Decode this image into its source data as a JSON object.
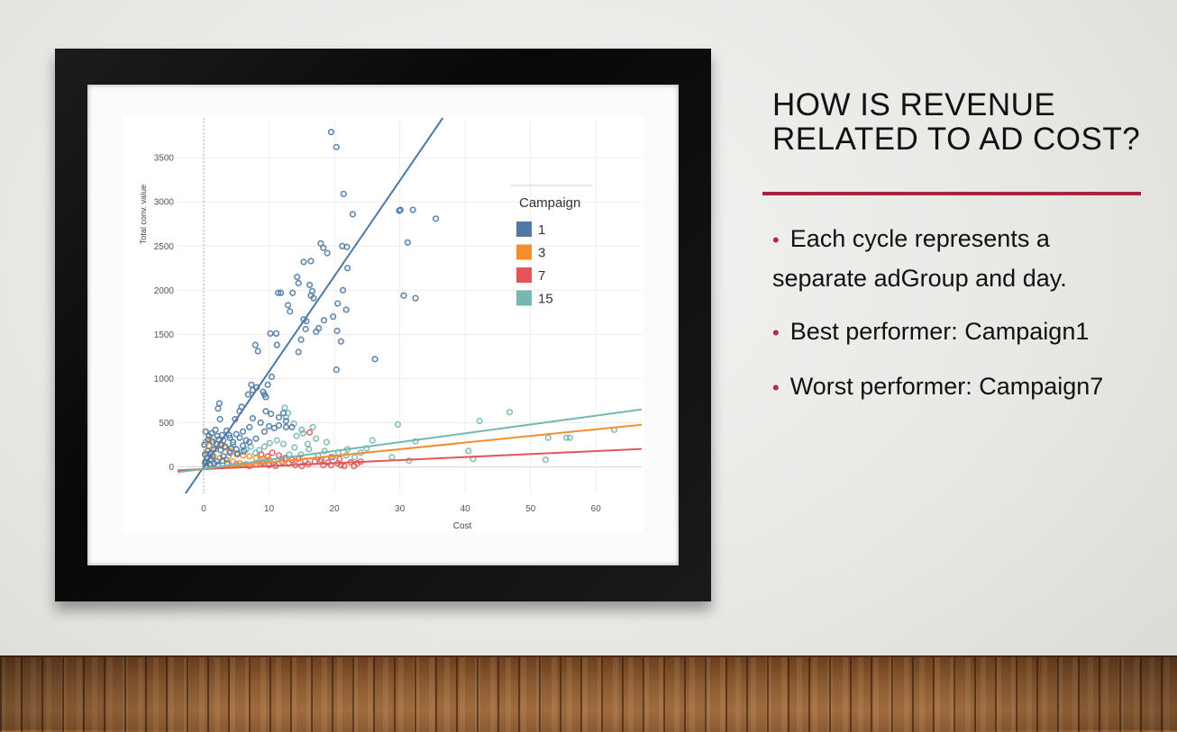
{
  "slide": {
    "title_line1": "HOW IS REVENUE",
    "title_line2": "RELATED TO AD COST?",
    "bullets": [
      {
        "line1": "Each cycle represents a",
        "line2": "separate adGroup and day."
      },
      {
        "line1": "Best performer: Campaign1"
      },
      {
        "line1": "Worst performer: Campaign7"
      }
    ],
    "accent_color": "#a6253d"
  },
  "chart_data": {
    "type": "scatter",
    "xlabel": "Cost",
    "ylabel": "Total conv. value",
    "xlim": [
      -4,
      67
    ],
    "ylim": [
      -300,
      3950
    ],
    "xticks": [
      0,
      10,
      20,
      30,
      40,
      50,
      60
    ],
    "yticks": [
      0,
      500,
      1000,
      1500,
      2000,
      2500,
      3000,
      3500
    ],
    "grid": true,
    "legend": {
      "title": "Campaign",
      "position": "top-right"
    },
    "series": [
      {
        "name": "1",
        "color": "#4e79a7",
        "trend": {
          "slope": 108,
          "intercept": 0
        },
        "points": [
          [
            19.5,
            3790
          ],
          [
            20.3,
            3620
          ],
          [
            21.4,
            3090
          ],
          [
            22.8,
            2860
          ],
          [
            29.9,
            2900
          ],
          [
            30.1,
            2910
          ],
          [
            32,
            2910
          ],
          [
            35.5,
            2810
          ],
          [
            31.2,
            2540
          ],
          [
            30.6,
            1940
          ],
          [
            32.4,
            1910
          ],
          [
            26.2,
            1220
          ],
          [
            20.3,
            1100
          ],
          [
            21,
            1420
          ],
          [
            21.3,
            2000
          ],
          [
            21.8,
            1780
          ],
          [
            22,
            2250
          ],
          [
            20.5,
            1850
          ],
          [
            21.2,
            2500
          ],
          [
            21.9,
            2490
          ],
          [
            18.9,
            2420
          ],
          [
            17.9,
            2530
          ],
          [
            18.3,
            2480
          ],
          [
            15.3,
            2320
          ],
          [
            16.4,
            2330
          ],
          [
            14.3,
            2150
          ],
          [
            14.5,
            2080
          ],
          [
            13.6,
            1970
          ],
          [
            11.4,
            1970
          ],
          [
            11.8,
            1970
          ],
          [
            12.9,
            1830
          ],
          [
            13.2,
            1760
          ],
          [
            16.2,
            2060
          ],
          [
            16.6,
            1990
          ],
          [
            16.4,
            1940
          ],
          [
            16.8,
            1910
          ],
          [
            15.3,
            1670
          ],
          [
            15.7,
            1650
          ],
          [
            17.2,
            1530
          ],
          [
            18.4,
            1660
          ],
          [
            19.8,
            1700
          ],
          [
            20.4,
            1540
          ],
          [
            17.6,
            1570
          ],
          [
            15.6,
            1560
          ],
          [
            14.9,
            1440
          ],
          [
            14.5,
            1300
          ],
          [
            10.2,
            1510
          ],
          [
            11.1,
            1510
          ],
          [
            11.2,
            1380
          ],
          [
            7.9,
            1380
          ],
          [
            8.3,
            1310
          ],
          [
            9.8,
            930
          ],
          [
            10.4,
            1020
          ],
          [
            9.3,
            820
          ],
          [
            9.1,
            850
          ],
          [
            9.5,
            790
          ],
          [
            8.1,
            900
          ],
          [
            7.3,
            930
          ],
          [
            7.5,
            870
          ],
          [
            6.8,
            820
          ],
          [
            5.8,
            680
          ],
          [
            5.5,
            630
          ],
          [
            4.8,
            540
          ],
          [
            2.4,
            720
          ],
          [
            2.2,
            660
          ],
          [
            2.5,
            540
          ],
          [
            7.5,
            550
          ],
          [
            8.7,
            500
          ],
          [
            9.5,
            630
          ],
          [
            10.3,
            600
          ],
          [
            11.5,
            560
          ],
          [
            12.2,
            610
          ],
          [
            12.6,
            520
          ],
          [
            10,
            460
          ],
          [
            10.8,
            440
          ],
          [
            9.3,
            400
          ],
          [
            11.5,
            470
          ],
          [
            12.6,
            450
          ],
          [
            13.5,
            450
          ],
          [
            7,
            450
          ],
          [
            6,
            400
          ],
          [
            5,
            370
          ],
          [
            4,
            330
          ],
          [
            3,
            300
          ],
          [
            2,
            260
          ],
          [
            1.5,
            200
          ],
          [
            1,
            150
          ],
          [
            0.5,
            100
          ],
          [
            0.2,
            40
          ],
          [
            0.5,
            0
          ],
          [
            1,
            20
          ],
          [
            2,
            60
          ],
          [
            3,
            120
          ],
          [
            4,
            160
          ],
          [
            5,
            200
          ],
          [
            6,
            240
          ],
          [
            7,
            280
          ],
          [
            8,
            320
          ],
          [
            0.3,
            400
          ],
          [
            0.8,
            350
          ],
          [
            1.2,
            380
          ],
          [
            1.8,
            420
          ],
          [
            2.3,
            310
          ],
          [
            2.8,
            360
          ],
          [
            3.5,
            410
          ],
          [
            4.5,
            280
          ],
          [
            5.5,
            330
          ],
          [
            6.5,
            300
          ],
          [
            0.1,
            250
          ],
          [
            0.6,
            180
          ],
          [
            1.4,
            280
          ],
          [
            2.6,
            190
          ],
          [
            3.3,
            230
          ],
          [
            4.2,
            210
          ],
          [
            5.2,
            150
          ],
          [
            6.2,
            180
          ],
          [
            0.4,
            60
          ],
          [
            1.1,
            90
          ],
          [
            1.6,
            40
          ],
          [
            2.2,
            20
          ],
          [
            2.9,
            70
          ],
          [
            3.6,
            40
          ],
          [
            0.2,
            140
          ],
          [
            0.7,
            310
          ],
          [
            1.3,
            120
          ],
          [
            2.1,
            350
          ],
          [
            2.7,
            250
          ],
          [
            3.9,
            360
          ]
        ]
      },
      {
        "name": "3",
        "color": "#f28e2b",
        "trend": {
          "slope": 7.5,
          "intercept": -25
        },
        "points": [
          [
            0.3,
            280
          ],
          [
            0.8,
            240
          ],
          [
            1.2,
            300
          ],
          [
            1.8,
            200
          ],
          [
            2.5,
            260
          ],
          [
            3.2,
            220
          ],
          [
            4,
            180
          ],
          [
            5,
            150
          ],
          [
            6,
            130
          ],
          [
            7,
            120
          ],
          [
            8,
            100
          ],
          [
            9,
            90
          ],
          [
            10,
            80
          ],
          [
            0.5,
            150
          ],
          [
            1.5,
            120
          ],
          [
            2.5,
            100
          ],
          [
            3.5,
            80
          ],
          [
            4.5,
            60
          ],
          [
            5.5,
            40
          ],
          [
            6.5,
            30
          ],
          [
            0.2,
            60
          ],
          [
            0.9,
            30
          ]
        ]
      },
      {
        "name": "7",
        "color": "#e15759",
        "trend": {
          "slope": 3.4,
          "intercept": -25
        },
        "points": [
          [
            16.2,
            390
          ],
          [
            17.8,
            60
          ],
          [
            18.3,
            20
          ],
          [
            19.5,
            20
          ],
          [
            20.5,
            40
          ],
          [
            21.5,
            10
          ],
          [
            22.5,
            50
          ],
          [
            23.5,
            40
          ],
          [
            24,
            60
          ],
          [
            23,
            10
          ],
          [
            21,
            20
          ],
          [
            19,
            50
          ],
          [
            18,
            80
          ],
          [
            17,
            60
          ],
          [
            16,
            30
          ],
          [
            15,
            10
          ],
          [
            14,
            20
          ],
          [
            13,
            40
          ],
          [
            12,
            60
          ],
          [
            11,
            10
          ],
          [
            10,
            20
          ],
          [
            9,
            50
          ],
          [
            8,
            30
          ],
          [
            7,
            10
          ],
          [
            6,
            20
          ],
          [
            5,
            30
          ],
          [
            10.5,
            160
          ],
          [
            11.5,
            130
          ],
          [
            12.5,
            100
          ],
          [
            13.5,
            80
          ],
          [
            14.5,
            90
          ],
          [
            15.5,
            70
          ],
          [
            19.5,
            110
          ],
          [
            20.8,
            90
          ],
          [
            9.8,
            120
          ],
          [
            8.8,
            140
          ]
        ]
      },
      {
        "name": "15",
        "color": "#76b7b2",
        "trend": {
          "slope": 10,
          "intercept": -20
        },
        "points": [
          [
            46.8,
            620
          ],
          [
            42.2,
            520
          ],
          [
            29.7,
            480
          ],
          [
            25.8,
            300
          ],
          [
            32.4,
            290
          ],
          [
            40.5,
            180
          ],
          [
            41.2,
            90
          ],
          [
            52.3,
            80
          ],
          [
            52.7,
            330
          ],
          [
            55.5,
            330
          ],
          [
            56,
            330
          ],
          [
            62.8,
            420
          ],
          [
            31.4,
            70
          ],
          [
            28.8,
            110
          ],
          [
            24,
            160
          ],
          [
            24.9,
            210
          ],
          [
            22,
            200
          ],
          [
            16.7,
            450
          ],
          [
            15,
            420
          ],
          [
            13.8,
            490
          ],
          [
            12.4,
            670
          ],
          [
            12.9,
            610
          ],
          [
            12.6,
            560
          ],
          [
            14.2,
            350
          ],
          [
            15.2,
            380
          ],
          [
            15.9,
            260
          ],
          [
            16.1,
            200
          ],
          [
            13.9,
            220
          ],
          [
            12.2,
            260
          ],
          [
            11.2,
            300
          ],
          [
            10.1,
            270
          ],
          [
            9.3,
            230
          ],
          [
            8.5,
            190
          ],
          [
            7.9,
            160
          ],
          [
            7.2,
            230
          ],
          [
            6.5,
            200
          ],
          [
            5.8,
            170
          ],
          [
            5.1,
            140
          ],
          [
            4.5,
            250
          ],
          [
            3.8,
            120
          ],
          [
            17.5,
            130
          ],
          [
            18.5,
            180
          ],
          [
            19.8,
            110
          ],
          [
            20.6,
            160
          ],
          [
            21.8,
            130
          ],
          [
            23.1,
            110
          ],
          [
            17.2,
            320
          ],
          [
            18.8,
            280
          ],
          [
            14.9,
            140
          ],
          [
            13.1,
            140
          ],
          [
            11.9,
            90
          ],
          [
            10.8,
            60
          ],
          [
            9.9,
            40
          ],
          [
            8.7,
            80
          ]
        ]
      }
    ]
  }
}
